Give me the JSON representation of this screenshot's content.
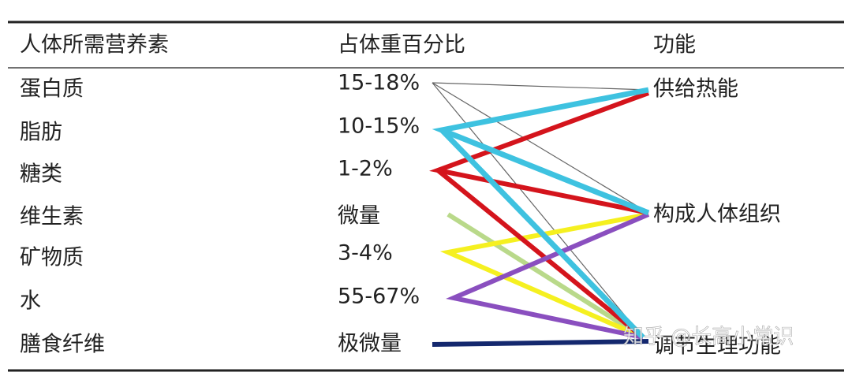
{
  "table": {
    "header": [
      "人体所需营养素",
      "占体重百分比",
      "功能"
    ],
    "rows": [
      [
        "蛋白质",
        "15-18%"
      ],
      [
        "脂肪",
        "10-15%"
      ],
      [
        "糖类",
        "1-2%"
      ],
      [
        "维生素",
        "微量"
      ],
      [
        "矿物质",
        "3-4%"
      ],
      [
        "水",
        "55-67%"
      ],
      [
        "膳食纤维",
        "极微量"
      ]
    ],
    "functions": [
      "供给热能",
      "构成人体组织",
      "调节生理功能"
    ]
  },
  "watermark": "知乎 @长高小常识"
}
